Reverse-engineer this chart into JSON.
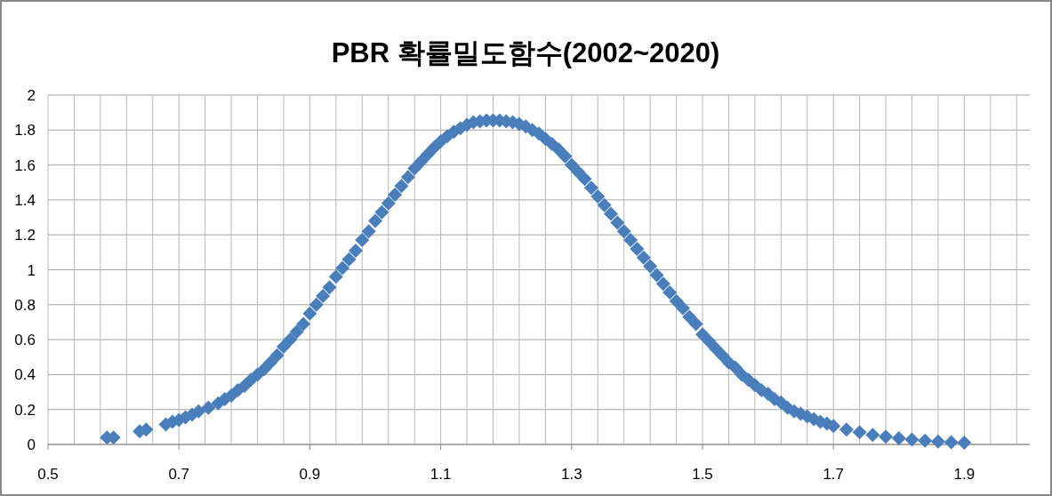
{
  "chart_data": {
    "type": "scatter",
    "title": "PBR 확률밀도함수(2002~2020)",
    "x": [
      0.59,
      0.6,
      0.64,
      0.65,
      0.68,
      0.69,
      0.7,
      0.71,
      0.72,
      0.73,
      0.745,
      0.76,
      0.77,
      0.78,
      0.79,
      0.8,
      0.81,
      0.82,
      0.83,
      0.84,
      0.85,
      0.86,
      0.87,
      0.88,
      0.89,
      0.9,
      0.91,
      0.92,
      0.93,
      0.94,
      0.95,
      0.96,
      0.97,
      0.98,
      0.99,
      1.0,
      1.01,
      1.02,
      1.03,
      1.04,
      1.05,
      1.06,
      1.07,
      1.08,
      1.09,
      1.1,
      1.11,
      1.12,
      1.13,
      1.14,
      1.15,
      1.16,
      1.17,
      1.18,
      1.19,
      1.2,
      1.21,
      1.22,
      1.23,
      1.24,
      1.25,
      1.26,
      1.27,
      1.28,
      1.29,
      1.3,
      1.31,
      1.32,
      1.33,
      1.34,
      1.35,
      1.36,
      1.37,
      1.38,
      1.39,
      1.4,
      1.41,
      1.42,
      1.43,
      1.44,
      1.45,
      1.46,
      1.47,
      1.48,
      1.49,
      1.5,
      1.51,
      1.52,
      1.53,
      1.54,
      1.55,
      1.56,
      1.57,
      1.58,
      1.59,
      1.6,
      1.61,
      1.62,
      1.63,
      1.64,
      1.65,
      1.66,
      1.67,
      1.68,
      1.69,
      1.7,
      1.72,
      1.74,
      1.76,
      1.78,
      1.8,
      1.82,
      1.84,
      1.86,
      1.88,
      1.9
    ],
    "values": [
      0.04,
      0.04,
      0.075,
      0.085,
      0.115,
      0.13,
      0.14,
      0.155,
      0.17,
      0.19,
      0.21,
      0.235,
      0.26,
      0.28,
      0.31,
      0.335,
      0.37,
      0.4,
      0.43,
      0.47,
      0.51,
      0.56,
      0.6,
      0.645,
      0.69,
      0.75,
      0.8,
      0.85,
      0.9,
      0.96,
      1.01,
      1.06,
      1.11,
      1.17,
      1.22,
      1.28,
      1.33,
      1.38,
      1.43,
      1.48,
      1.53,
      1.58,
      1.62,
      1.66,
      1.7,
      1.735,
      1.765,
      1.79,
      1.81,
      1.83,
      1.845,
      1.85,
      1.855,
      1.855,
      1.855,
      1.85,
      1.845,
      1.835,
      1.82,
      1.8,
      1.78,
      1.75,
      1.72,
      1.69,
      1.65,
      1.6,
      1.56,
      1.52,
      1.47,
      1.42,
      1.37,
      1.32,
      1.27,
      1.22,
      1.17,
      1.12,
      1.07,
      1.02,
      0.97,
      0.92,
      0.87,
      0.82,
      0.78,
      0.73,
      0.69,
      0.63,
      0.59,
      0.55,
      0.51,
      0.47,
      0.44,
      0.4,
      0.37,
      0.34,
      0.31,
      0.29,
      0.26,
      0.24,
      0.21,
      0.19,
      0.175,
      0.16,
      0.145,
      0.13,
      0.12,
      0.105,
      0.085,
      0.07,
      0.055,
      0.045,
      0.035,
      0.028,
      0.022,
      0.017,
      0.013,
      0.01
    ],
    "color": "#4a7ebb",
    "marker": "diamond",
    "grid": true,
    "xlim": [
      0.5,
      2.0
    ],
    "ylim": [
      0,
      2
    ],
    "xticks": [
      0.5,
      {
        "value": 0.54,
        "label": null
      },
      {
        "value": 0.58,
        "label": null
      },
      {
        "value": 0.62,
        "label": null
      },
      {
        "value": 0.66,
        "label": null
      },
      0.7,
      {
        "value": 0.74,
        "label": null
      },
      {
        "value": 0.78,
        "label": null
      },
      {
        "value": 0.82,
        "label": null
      },
      {
        "value": 0.86,
        "label": null
      },
      0.9,
      {
        "value": 0.94,
        "label": null
      },
      {
        "value": 0.98,
        "label": null
      },
      {
        "value": 1.02,
        "label": null
      },
      {
        "value": 1.06,
        "label": null
      },
      1.1,
      {
        "value": 1.14,
        "label": null
      },
      {
        "value": 1.18,
        "label": null
      },
      {
        "value": 1.22,
        "label": null
      },
      {
        "value": 1.26,
        "label": null
      },
      1.3,
      {
        "value": 1.34,
        "label": null
      },
      {
        "value": 1.38,
        "label": null
      },
      {
        "value": 1.42,
        "label": null
      },
      {
        "value": 1.46,
        "label": null
      },
      1.5,
      {
        "value": 1.54,
        "label": null
      },
      {
        "value": 1.58,
        "label": null
      },
      {
        "value": 1.62,
        "label": null
      },
      {
        "value": 1.66,
        "label": null
      },
      1.7,
      {
        "value": 1.74,
        "label": null
      },
      {
        "value": 1.78,
        "label": null
      },
      {
        "value": 1.82,
        "label": null
      },
      {
        "value": 1.86,
        "label": null
      },
      1.9,
      {
        "value": 1.94,
        "label": null
      },
      {
        "value": 1.98,
        "label": null
      }
    ],
    "yticks": [
      0,
      0.2,
      0.4,
      0.6,
      0.8,
      1,
      1.2,
      1.4,
      1.6,
      1.8,
      2
    ]
  }
}
